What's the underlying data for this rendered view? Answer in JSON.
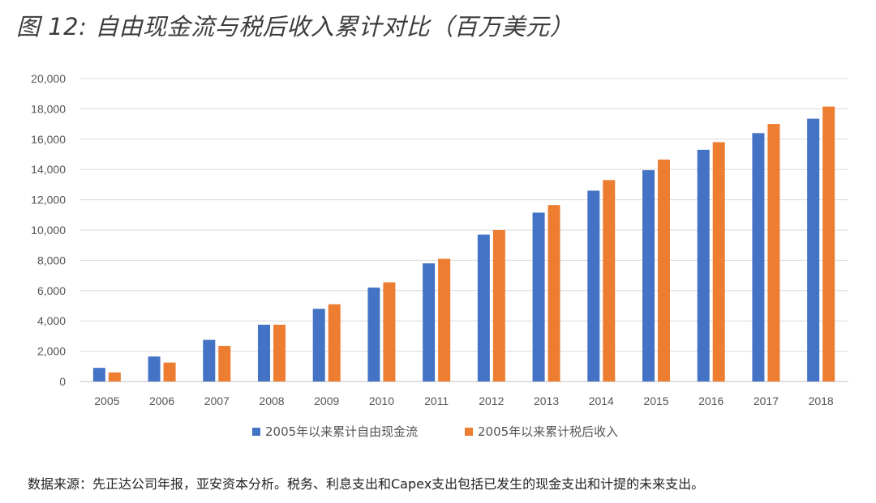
{
  "figure": {
    "title": "图 12: 自由现金流与税后收入累计对比（百万美元）",
    "source_note": "数据来源：先正达公司年报，亚安资本分析。税务、利息支出和Capex支出包括已发生的现金支出和计提的未来支出。"
  },
  "chart_data": {
    "type": "bar",
    "title": "图 12: 自由现金流与税后收入累计对比（百万美元）",
    "xlabel": "",
    "ylabel": "",
    "ylim": [
      0,
      20000
    ],
    "yticks": [
      0,
      2000,
      4000,
      6000,
      8000,
      10000,
      12000,
      14000,
      16000,
      18000,
      20000
    ],
    "ytick_labels": [
      "0",
      "2,000",
      "4,000",
      "6,000",
      "8,000",
      "10,000",
      "12,000",
      "14,000",
      "16,000",
      "18,000",
      "20,000"
    ],
    "grid": true,
    "legend_position": "bottom-center",
    "categories": [
      "2005",
      "2006",
      "2007",
      "2008",
      "2009",
      "2010",
      "2011",
      "2012",
      "2013",
      "2014",
      "2015",
      "2016",
      "2017",
      "2018"
    ],
    "series": [
      {
        "name": "2005年以来累计自由现金流",
        "color": "#4472C4",
        "values": [
          900,
          1650,
          2750,
          3750,
          4800,
          6200,
          7800,
          9700,
          11150,
          12600,
          13950,
          15300,
          16400,
          17350
        ]
      },
      {
        "name": "2005年以来累计税后收入",
        "color": "#ED7D31",
        "values": [
          600,
          1250,
          2350,
          3750,
          5100,
          6550,
          8100,
          10000,
          11650,
          13300,
          14650,
          15800,
          17000,
          18150
        ]
      }
    ]
  }
}
